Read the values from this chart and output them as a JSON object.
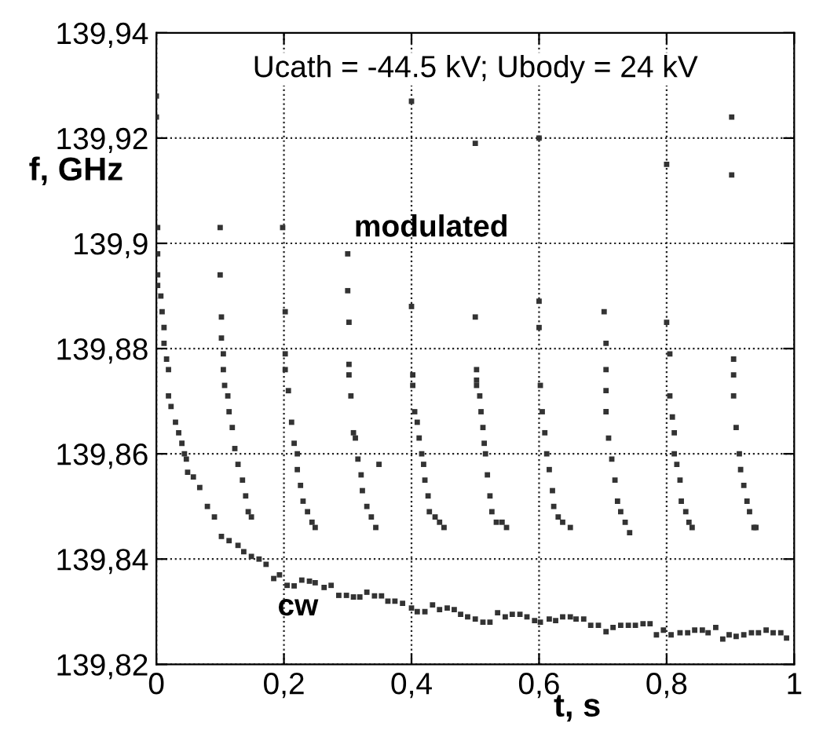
{
  "chart_data": {
    "type": "scatter",
    "xlabel": "t, s",
    "ylabel": "f, GHz",
    "annotations": [
      "Ucath = -44.5 kV; Ubody = 24 kV",
      "modulated",
      "cw"
    ],
    "xlim": [
      0,
      1
    ],
    "ylim": [
      139.82,
      139.94
    ],
    "xticks": [
      0,
      {
        "value": 0.2,
        "label": "0,2"
      },
      {
        "value": 0.4,
        "label": "0,4"
      },
      {
        "value": 0.6,
        "label": "0,6"
      },
      {
        "value": 0.8,
        "label": "0,8"
      },
      1
    ],
    "yticks": [
      {
        "value": 139.82,
        "label": "139,82"
      },
      {
        "value": 139.84,
        "label": "139,84"
      },
      {
        "value": 139.86,
        "label": "139,86"
      },
      {
        "value": 139.88,
        "label": "139,88"
      },
      {
        "value": 139.9,
        "label": "139,9"
      },
      {
        "value": 139.92,
        "label": "139,92"
      },
      {
        "value": 139.94,
        "label": "139,94"
      }
    ],
    "grid": true,
    "marker": "square",
    "series": [
      {
        "color": "#333333",
        "x": [
          0.0,
          0.0,
          0.002,
          0.002,
          0.002,
          0.002,
          0.007,
          0.009,
          0.012,
          0.012,
          0.016,
          0.019,
          0.019,
          0.023,
          0.03,
          0.035,
          0.04,
          0.044,
          0.047,
          0.1,
          0.1,
          0.102,
          0.102,
          0.105,
          0.105,
          0.107,
          0.112,
          0.114,
          0.119,
          0.123,
          0.128,
          0.135,
          0.14,
          0.144,
          0.149,
          0.198,
          0.202,
          0.202,
          0.202,
          0.207,
          0.212,
          0.216,
          0.221,
          0.221,
          0.226,
          0.23,
          0.237,
          0.244,
          0.249,
          0.3,
          0.3,
          0.302,
          0.302,
          0.302,
          0.305,
          0.309,
          0.312,
          0.316,
          0.321,
          0.323,
          0.33,
          0.337,
          0.344,
          0.349,
          0.4,
          0.4,
          0.402,
          0.402,
          0.405,
          0.409,
          0.412,
          0.416,
          0.419,
          0.421,
          0.426,
          0.428,
          0.437,
          0.444,
          0.451,
          0.5,
          0.5,
          0.502,
          0.502,
          0.502,
          0.507,
          0.509,
          0.512,
          0.514,
          0.516,
          0.519,
          0.523,
          0.526,
          0.533,
          0.542,
          0.549,
          0.6,
          0.6,
          0.6,
          0.602,
          0.605,
          0.609,
          0.612,
          0.616,
          0.621,
          0.623,
          0.63,
          0.637,
          0.649,
          0.702,
          0.705,
          0.705,
          0.705,
          0.705,
          0.709,
          0.714,
          0.719,
          0.723,
          0.728,
          0.735,
          0.742,
          0.8,
          0.8,
          0.805,
          0.805,
          0.809,
          0.812,
          0.812,
          0.816,
          0.821,
          0.823,
          0.83,
          0.835,
          0.84,
          0.902,
          0.902,
          0.905,
          0.905,
          0.905,
          0.909,
          0.914,
          0.916,
          0.921,
          0.926,
          0.93,
          0.937,
          0.94
        ],
        "values": [
          139.928,
          139.924,
          139.903,
          139.898,
          139.894,
          139.892,
          139.89,
          139.887,
          139.884,
          139.881,
          139.878,
          139.876,
          139.871,
          139.869,
          139.866,
          139.864,
          139.862,
          139.86,
          139.859,
          139.903,
          139.894,
          139.886,
          139.882,
          139.879,
          139.876,
          139.873,
          139.871,
          139.868,
          139.865,
          139.861,
          139.858,
          139.855,
          139.852,
          139.849,
          139.848,
          139.903,
          139.887,
          139.879,
          139.876,
          139.872,
          139.866,
          139.862,
          139.86,
          139.857,
          139.854,
          139.851,
          139.849,
          139.847,
          139.846,
          139.898,
          139.891,
          139.885,
          139.877,
          139.875,
          139.871,
          139.864,
          139.863,
          139.859,
          139.856,
          139.853,
          139.85,
          139.848,
          139.846,
          139.858,
          139.927,
          139.888,
          139.875,
          139.873,
          139.868,
          139.866,
          139.863,
          139.86,
          139.858,
          139.855,
          139.852,
          139.849,
          139.848,
          139.847,
          139.846,
          139.919,
          139.886,
          139.876,
          139.874,
          139.873,
          139.871,
          139.868,
          139.865,
          139.862,
          139.86,
          139.856,
          139.852,
          139.849,
          139.847,
          139.847,
          139.846,
          139.92,
          139.889,
          139.884,
          139.873,
          139.868,
          139.864,
          139.86,
          139.857,
          139.853,
          139.85,
          139.848,
          139.847,
          139.846,
          139.887,
          139.881,
          139.876,
          139.872,
          139.868,
          139.863,
          139.859,
          139.855,
          139.851,
          139.849,
          139.847,
          139.845,
          139.915,
          139.885,
          139.879,
          139.871,
          139.867,
          139.864,
          139.86,
          139.858,
          139.855,
          139.851,
          139.849,
          139.847,
          139.846,
          139.924,
          139.913,
          139.878,
          139.875,
          139.871,
          139.865,
          139.86,
          139.857,
          139.854,
          139.851,
          139.849,
          139.846,
          139.846
        ]
      },
      {
        "color": "#333333",
        "x": [
          0.049,
          0.058,
          0.068,
          0.08,
          0.091,
          0.102,
          0.114,
          0.128,
          0.137,
          0.149,
          0.161,
          0.172,
          0.184,
          0.193,
          0.205,
          0.216,
          0.228,
          0.24,
          0.249,
          0.263,
          0.274,
          0.286,
          0.298,
          0.309,
          0.319,
          0.33,
          0.342,
          0.353,
          0.363,
          0.374,
          0.386,
          0.4,
          0.409,
          0.421,
          0.433,
          0.444,
          0.456,
          0.467,
          0.477,
          0.488,
          0.5,
          0.512,
          0.523,
          0.535,
          0.547,
          0.558,
          0.57,
          0.581,
          0.593,
          0.602,
          0.616,
          0.626,
          0.637,
          0.649,
          0.658,
          0.67,
          0.681,
          0.693,
          0.705,
          0.716,
          0.728,
          0.74,
          0.751,
          0.763,
          0.774,
          0.784,
          0.795,
          0.807,
          0.821,
          0.833,
          0.844,
          0.856,
          0.865,
          0.877,
          0.888,
          0.898,
          0.909,
          0.921,
          0.933,
          0.944,
          0.956,
          0.967,
          0.979,
          0.988
        ],
        "values": [
          139.8565,
          139.8556,
          139.8536,
          139.85,
          139.848,
          139.8443,
          139.8435,
          139.8426,
          139.8414,
          139.8405,
          139.84,
          139.839,
          139.8363,
          139.837,
          139.835,
          139.8349,
          139.836,
          139.8358,
          139.8355,
          139.8346,
          139.835,
          139.8331,
          139.8331,
          139.8328,
          139.8328,
          139.8337,
          139.833,
          139.833,
          139.832,
          139.832,
          139.8316,
          139.8307,
          139.83,
          139.83,
          139.8313,
          139.8304,
          139.8307,
          139.8304,
          139.8295,
          139.829,
          139.8286,
          139.828,
          139.828,
          139.8298,
          139.829,
          139.8295,
          139.8295,
          139.829,
          139.8283,
          139.828,
          139.8286,
          139.8283,
          139.829,
          139.829,
          139.8286,
          139.8286,
          139.8274,
          139.8274,
          139.8262,
          139.827,
          139.8274,
          139.8274,
          139.8274,
          139.8277,
          139.8277,
          139.8256,
          139.8265,
          139.8256,
          139.826,
          139.826,
          139.8265,
          139.8265,
          139.826,
          139.827,
          139.8248,
          139.8256,
          139.8253,
          139.8256,
          139.826,
          139.826,
          139.8265,
          139.826,
          139.826,
          139.825
        ]
      }
    ]
  }
}
